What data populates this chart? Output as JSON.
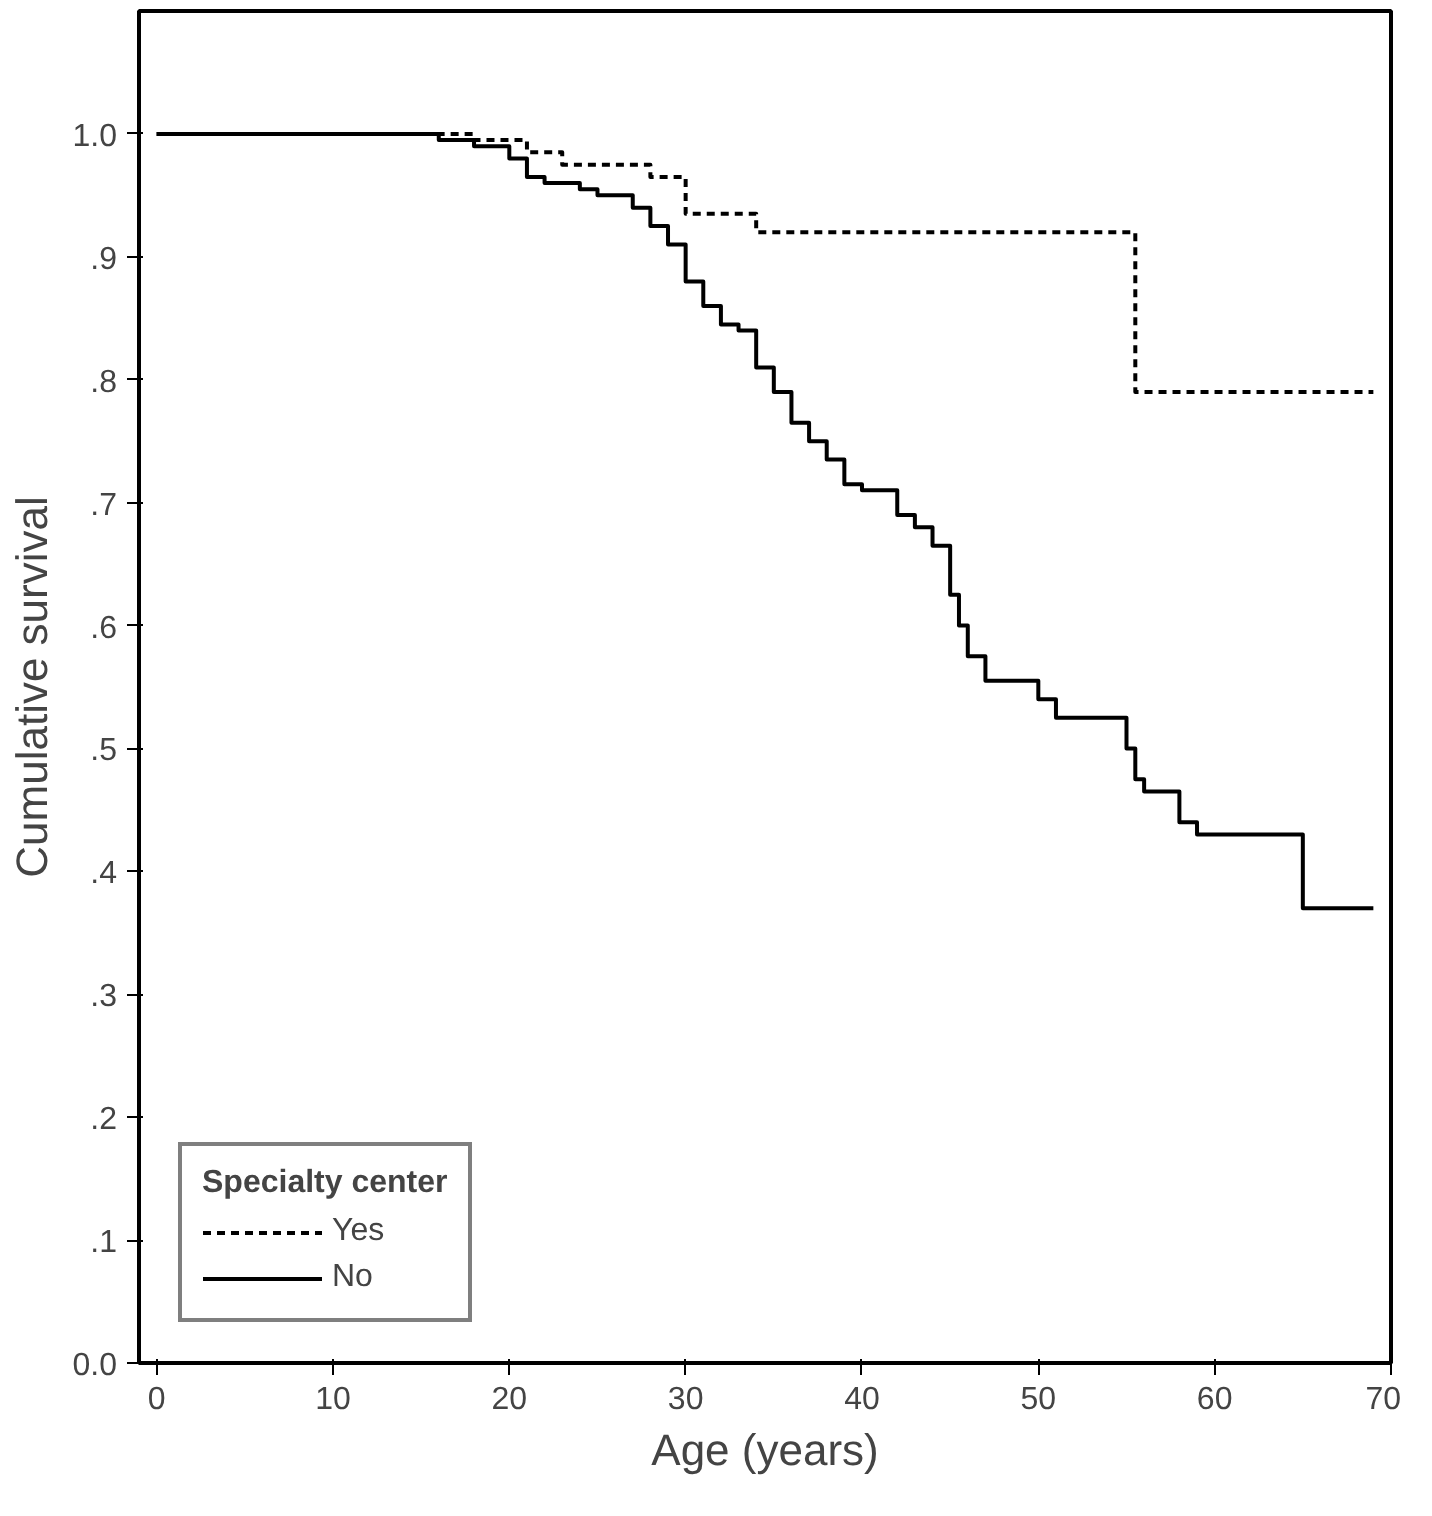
{
  "chart_data": {
    "type": "step",
    "xlabel": "Age (years)",
    "ylabel": "Cumulative survival",
    "legend_title": "Specialty center",
    "legend": "bottom left",
    "grid": false,
    "marker": "none",
    "xlim": [
      -1,
      70
    ],
    "ylim": [
      0,
      1.1
    ],
    "xticks": [
      0,
      10,
      20,
      30,
      40,
      50,
      60,
      70
    ],
    "yticks": [
      {
        "value": 0,
        "label": "0.0"
      },
      {
        "value": 0.1,
        "label": ".1"
      },
      {
        "value": 0.2,
        "label": ".2"
      },
      {
        "value": 0.3,
        "label": ".3"
      },
      {
        "value": 0.4,
        "label": ".4"
      },
      {
        "value": 0.5,
        "label": ".5"
      },
      {
        "value": 0.6,
        "label": ".6"
      },
      {
        "value": 0.7,
        "label": ".7"
      },
      {
        "value": 0.8,
        "label": ".8"
      },
      {
        "value": 0.9,
        "label": ".9"
      },
      {
        "value": 1.0,
        "label": "1.0"
      }
    ],
    "series": [
      {
        "name": "Yes",
        "color": "#000000",
        "line_style": "dashed",
        "x": [
          0,
          18,
          21,
          23,
          28,
          30,
          34,
          55.5,
          69
        ],
        "values": [
          1.0,
          0.995,
          0.985,
          0.975,
          0.965,
          0.935,
          0.92,
          0.79,
          0.79
        ]
      },
      {
        "name": "No",
        "color": "#000000",
        "line_style": "solid",
        "x": [
          0,
          16,
          18,
          20,
          21,
          22,
          24,
          25,
          27,
          28,
          29,
          30,
          31,
          32,
          33,
          34,
          35,
          36,
          37,
          38,
          39,
          40,
          42,
          43,
          44,
          45,
          45.5,
          46,
          47,
          50,
          51,
          55,
          55.5,
          56,
          58,
          59,
          65,
          69
        ],
        "values": [
          1.0,
          0.995,
          0.99,
          0.98,
          0.965,
          0.96,
          0.955,
          0.95,
          0.94,
          0.925,
          0.91,
          0.88,
          0.86,
          0.845,
          0.84,
          0.81,
          0.79,
          0.765,
          0.75,
          0.735,
          0.715,
          0.71,
          0.69,
          0.68,
          0.665,
          0.625,
          0.6,
          0.575,
          0.555,
          0.54,
          0.525,
          0.5,
          0.475,
          0.465,
          0.44,
          0.43,
          0.37,
          0.37
        ]
      }
    ]
  }
}
